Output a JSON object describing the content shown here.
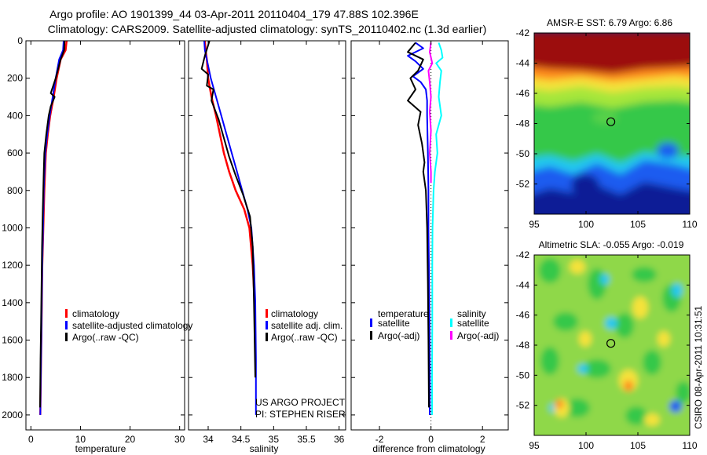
{
  "header": {
    "title_line1": "Argo profile: AO 1901399_44 03-Apr-2011 20110404_179 47.88S 102.396E",
    "title_line2": "Climatology: CARS2009. Satellite-adjusted climatology: synTS_20110402.nc (1.3d earlier)"
  },
  "colors": {
    "red": "#ff0000",
    "blue": "#0000ff",
    "black": "#000000",
    "cyan": "#00ffff",
    "magenta": "#ff00ff"
  },
  "chart_data": [
    {
      "type": "line",
      "name": "temperature",
      "xlabel": "temperature",
      "ylabel": "",
      "xlim": [
        -1,
        31
      ],
      "ylim": [
        2080,
        0
      ],
      "x_ticks": [
        0,
        10,
        20,
        30
      ],
      "x_tick_labels": [
        "0",
        "10",
        "20",
        "30"
      ],
      "y_ticks": [
        0,
        200,
        400,
        600,
        800,
        1000,
        1200,
        1400,
        1600,
        1800,
        2000
      ],
      "y_tick_labels": [
        "0",
        "200",
        "400",
        "600",
        "800",
        "1000",
        "1200",
        "1400",
        "1600",
        "1800",
        "2000"
      ],
      "legend": [
        "climatology",
        "satellite-adjusted climatology",
        "Argo(..raw -QC)"
      ],
      "series": [
        {
          "name": "climatology",
          "color": "red",
          "width": 2.5,
          "x": [
            7.2,
            7.0,
            6.0,
            5.2,
            4.6,
            3.9,
            3.4,
            3.0,
            2.7,
            2.5,
            2.3,
            2.2,
            2.1,
            2.0,
            1.9
          ],
          "y": [
            0,
            50,
            100,
            200,
            300,
            400,
            500,
            600,
            800,
            1000,
            1200,
            1400,
            1600,
            1800,
            2000
          ]
        },
        {
          "name": "satellite-adjusted climatology",
          "color": "blue",
          "width": 2,
          "x": [
            6.6,
            6.5,
            5.7,
            5.0,
            4.4,
            3.8,
            3.3,
            2.9,
            2.6,
            2.45,
            2.3,
            2.2,
            2.1,
            2.0,
            1.9
          ],
          "y": [
            0,
            50,
            100,
            200,
            300,
            400,
            500,
            600,
            800,
            1000,
            1200,
            1400,
            1600,
            1800,
            2000
          ]
        },
        {
          "name": "Argo(..raw -QC)",
          "color": "black",
          "width": 2,
          "x": [
            6.8,
            6.7,
            6.0,
            5.0,
            4.0,
            4.8,
            4.0,
            3.6,
            3.1,
            2.7,
            2.6,
            2.4,
            2.25,
            2.15,
            2.05,
            1.95,
            1.85
          ],
          "y": [
            0,
            50,
            100,
            200,
            280,
            300,
            350,
            400,
            500,
            600,
            700,
            900,
            1100,
            1300,
            1500,
            1700,
            1960
          ]
        }
      ]
    },
    {
      "type": "line",
      "name": "salinity",
      "xlabel": "salinity",
      "ylabel": "",
      "xlim": [
        33.7,
        36.1
      ],
      "ylim": [
        2080,
        0
      ],
      "x_ticks": [
        34,
        34.5,
        35,
        35.5,
        36
      ],
      "x_tick_labels": [
        "34",
        "34.5",
        "35",
        "35.5",
        "36"
      ],
      "legend": [
        "climatology",
        "satellite adj. clim.",
        "Argo(..raw -QC)"
      ],
      "annotations": [
        "US ARGO PROJECT",
        "PI: STEPHEN RISER"
      ],
      "series": [
        {
          "name": "climatology",
          "color": "red",
          "width": 2.5,
          "x": [
            33.95,
            33.96,
            33.98,
            34.0,
            34.05,
            34.12,
            34.18,
            34.24,
            34.32,
            34.42,
            34.55,
            34.63,
            34.68,
            34.71,
            34.72,
            34.72
          ],
          "y": [
            0,
            50,
            100,
            200,
            300,
            400,
            500,
            600,
            700,
            800,
            900,
            1000,
            1200,
            1400,
            1600,
            1660
          ]
        },
        {
          "name": "satellite adj. clim.",
          "color": "blue",
          "width": 2,
          "x": [
            33.94,
            33.95,
            33.98,
            34.04,
            34.12,
            34.2,
            34.28,
            34.36,
            34.44,
            34.52,
            34.6,
            34.66,
            34.7,
            34.72,
            34.73,
            34.73
          ],
          "y": [
            0,
            50,
            100,
            200,
            300,
            400,
            500,
            600,
            700,
            800,
            900,
            1000,
            1200,
            1400,
            1700,
            2000
          ]
        },
        {
          "name": "Argo(..raw -QC)",
          "color": "black",
          "width": 2,
          "x": [
            34.02,
            33.95,
            33.9,
            34.0,
            33.98,
            34.08,
            34.05,
            34.16,
            34.24,
            34.32,
            34.42,
            34.53,
            34.64,
            34.68,
            34.7,
            34.72
          ],
          "y": [
            0,
            80,
            150,
            180,
            240,
            260,
            320,
            420,
            520,
            620,
            720,
            820,
            940,
            1100,
            1400,
            1800
          ]
        }
      ]
    },
    {
      "type": "line",
      "name": "difference from climatology",
      "xlabel": "difference from climatology",
      "ylabel": "",
      "xlim": [
        -3.1,
        3.0
      ],
      "ylim": [
        2080,
        0
      ],
      "x_ticks": [
        -2,
        0,
        2
      ],
      "x_tick_labels": [
        "-2",
        "0",
        "2"
      ],
      "zero_line_x": 0,
      "legend_groups": [
        {
          "heading": "temperature",
          "entries": [
            "satellite",
            "Argo(-adj)"
          ]
        },
        {
          "heading": "salinity",
          "entries": [
            "satellite",
            "Argo(-adj)"
          ]
        }
      ],
      "series": [
        {
          "name": "temperature satellite",
          "color": "blue",
          "width": 2,
          "x": [
            -0.6,
            -0.3,
            -0.9,
            -0.6,
            -0.3,
            -0.7,
            -0.4,
            -0.2,
            -0.15,
            -0.15,
            -0.12,
            -0.1,
            -0.1,
            -0.08,
            -0.06,
            -0.05,
            -0.05
          ],
          "y": [
            10,
            40,
            80,
            110,
            150,
            190,
            220,
            260,
            320,
            400,
            600,
            800,
            1000,
            1200,
            1500,
            1800,
            2000
          ]
        },
        {
          "name": "temperature Argo(-adj)",
          "color": "black",
          "width": 2,
          "x": [
            -0.6,
            -0.9,
            -0.3,
            -0.5,
            -0.8,
            -0.6,
            -0.9,
            -0.4,
            -0.5,
            -0.35,
            -0.25,
            -0.3,
            -0.2,
            -0.15,
            -0.12,
            -0.1,
            -0.08
          ],
          "y": [
            10,
            60,
            100,
            160,
            200,
            260,
            320,
            380,
            450,
            550,
            650,
            700,
            800,
            1000,
            1300,
            1600,
            1960
          ]
        },
        {
          "name": "salinity satellite",
          "color": "cyan",
          "width": 2,
          "x": [
            0.3,
            0.4,
            0.45,
            0.2,
            0.4,
            0.35,
            0.3,
            0.4,
            0.2,
            0.25,
            0.15,
            0.1,
            0.06,
            0.05,
            0.05,
            0.04,
            0.04
          ],
          "y": [
            10,
            50,
            90,
            120,
            160,
            220,
            300,
            400,
            500,
            600,
            700,
            800,
            1000,
            1200,
            1500,
            1800,
            2000
          ]
        },
        {
          "name": "salinity Argo(-adj)",
          "color": "magenta",
          "width": 2,
          "x": [
            0.0,
            -0.05,
            0.05,
            -0.1,
            -0.05,
            0.0,
            -0.05,
            0.0,
            -0.05,
            0.0,
            0.0
          ],
          "y": [
            10,
            60,
            120,
            160,
            220,
            300,
            380,
            480,
            600,
            700,
            760
          ]
        }
      ]
    },
    {
      "type": "heatmap",
      "name": "sst-map",
      "title": "AMSR-E SST: 6.79 Argo: 6.86",
      "xlim": [
        95,
        110
      ],
      "ylim": [
        -54,
        -42
      ],
      "x_ticks": [
        95,
        100,
        105,
        110
      ],
      "x_tick_labels": [
        "95",
        "100",
        "105",
        "110"
      ],
      "y_ticks": [
        -42,
        -44,
        -46,
        -48,
        -50,
        -52
      ],
      "y_tick_labels": [
        "-42",
        "-44",
        "-46",
        "-48",
        "-50",
        "-52"
      ],
      "marker": {
        "lon": 102.396,
        "lat": -47.88
      },
      "colormap": "jet"
    },
    {
      "type": "heatmap",
      "name": "sla-map",
      "title": "Altimetric SLA: -0.055 Argo: -0.019",
      "xlim": [
        95,
        110
      ],
      "ylim": [
        -54,
        -42
      ],
      "x_ticks": [
        95,
        100,
        105,
        110
      ],
      "x_tick_labels": [
        "95",
        "100",
        "105",
        "110"
      ],
      "y_ticks": [
        -42,
        -44,
        -46,
        -48,
        -50,
        -52
      ],
      "y_tick_labels": [
        "-42",
        "-44",
        "-46",
        "-48",
        "-50",
        "-52"
      ],
      "marker": {
        "lon": 102.396,
        "lat": -47.88
      },
      "colormap": "jet"
    }
  ],
  "side_text": "CSIRO 08-Apr-2011 10:31:51"
}
